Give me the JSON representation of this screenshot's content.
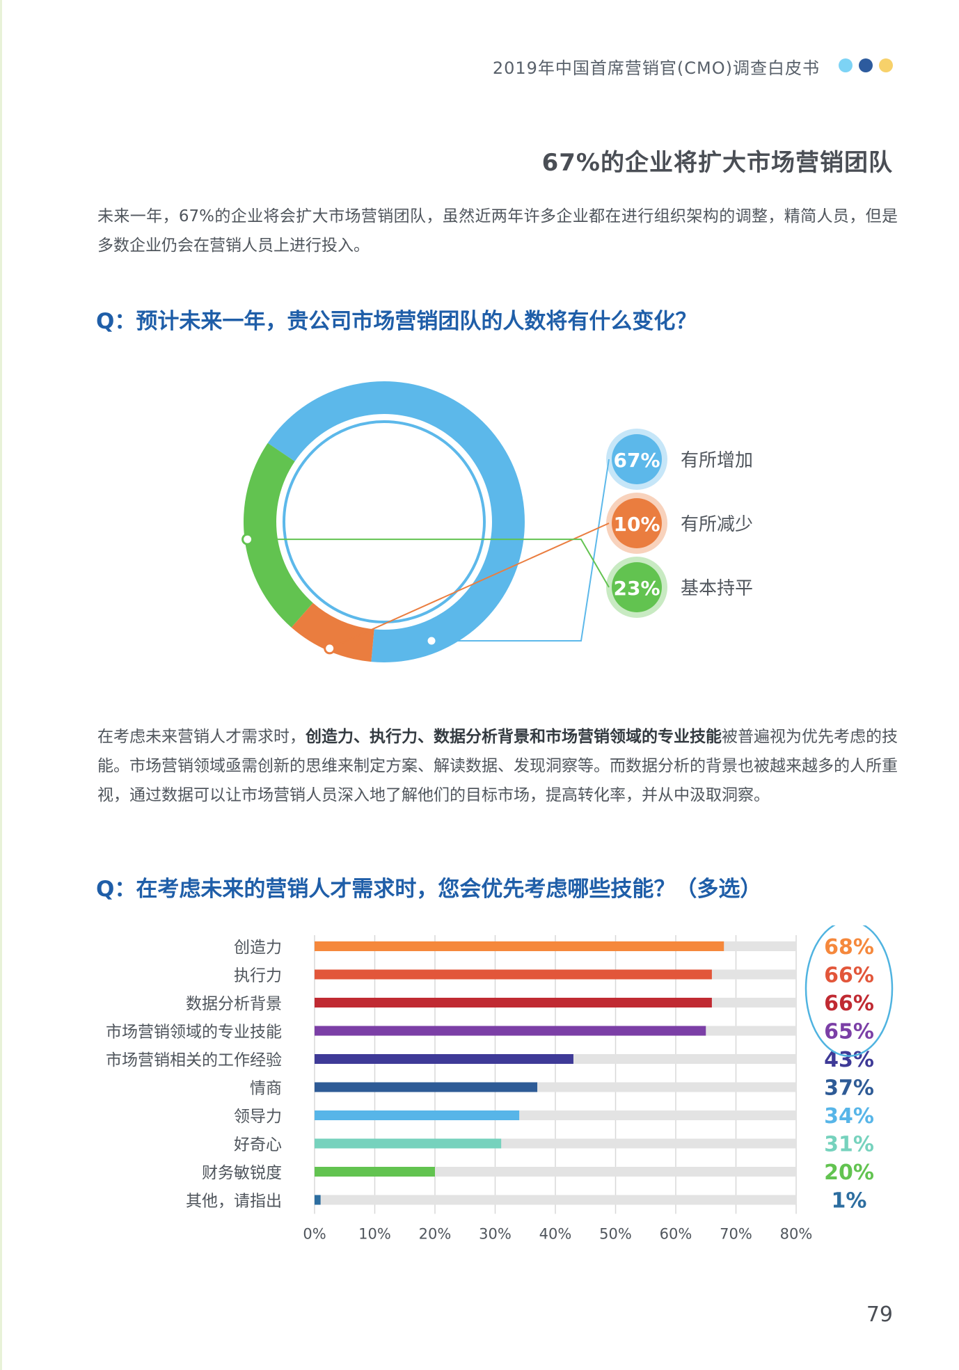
{
  "header": {
    "title": "2019年中国首席营销官(CMO)调查白皮书",
    "dots": [
      "#7dd3f5",
      "#2d5b9e",
      "#f7d16a"
    ]
  },
  "section_title": "67%的企业将扩大市场营销团队",
  "intro": "未来一年，67%的企业将会扩大市场营销团队，虽然近两年许多企业都在进行组织架构的调整，精简人员，但是多数企业仍会在营销人员上进行投入。",
  "q1": "Q：预计未来一年，贵公司市场营销团队的人数将有什么变化？",
  "para2": {
    "a": "在考虑未来营销人才需求时，",
    "b": "创造力、执行力、数据分析背景和市场营销领域的专业技能",
    "c": "被普遍视为优先考虑的技能。市场营销领域亟需创新的思维来制定方案、解读数据、发现洞察等。而数据分析的背景也被越来越多的人所重视，通过数据可以让市场营销人员深入地了解他们的目标市场，提高转化率，并从中汲取洞察。"
  },
  "q2": "Q：在考虑未来的营销人才需求时，您会优先考虑哪些技能？（多选）",
  "page_number": "79",
  "chart_data": [
    {
      "type": "pie",
      "variant": "donut",
      "slices": [
        {
          "label": "有所增加",
          "value": 67,
          "value_label": "67%",
          "color": "#5cb8ea"
        },
        {
          "label": "有所减少",
          "value": 10,
          "value_label": "10%",
          "color": "#ea7d3f"
        },
        {
          "label": "基本持平",
          "value": 23,
          "value_label": "23%",
          "color": "#62c350"
        }
      ]
    },
    {
      "type": "bar",
      "orientation": "horizontal",
      "categories": [
        "创造力",
        "执行力",
        "数据分析背景",
        "市场营销领域的专业技能",
        "市场营销相关的工作经验",
        "情商",
        "领导力",
        "好奇心",
        "财务敏锐度",
        "其他，请指出"
      ],
      "values": [
        68,
        66,
        66,
        65,
        43,
        37,
        34,
        31,
        20,
        1
      ],
      "value_labels": [
        "68%",
        "66%",
        "66%",
        "65%",
        "43%",
        "37%",
        "34%",
        "31%",
        "20%",
        "1%"
      ],
      "colors": [
        "#f5883c",
        "#e2563a",
        "#c02a32",
        "#7b3fa6",
        "#3e3a97",
        "#2e5b96",
        "#57b5e8",
        "#76d2bd",
        "#62c350",
        "#2d6ea0"
      ],
      "xlim": [
        0,
        80
      ],
      "xticks": [
        "0%",
        "10%",
        "20%",
        "30%",
        "40%",
        "50%",
        "60%",
        "70%",
        "80%"
      ],
      "grid": true,
      "highlight_top": 4
    }
  ]
}
